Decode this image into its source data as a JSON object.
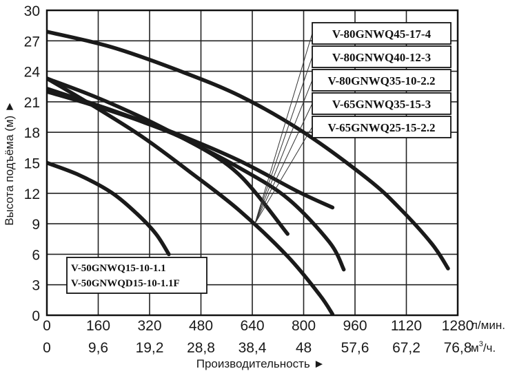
{
  "chart_data": {
    "type": "line",
    "title": "",
    "ylabel": "Высота подъёма (м) ►",
    "xlabel": "Производительность ►",
    "ylim": [
      0,
      30
    ],
    "xlim": [
      0,
      1280
    ],
    "grid": true,
    "y_ticks": [
      "0",
      "3",
      "6",
      "9",
      "12",
      "15",
      "18",
      "21",
      "24",
      "27",
      "30"
    ],
    "x_ticks_lmin": [
      "0",
      "160",
      "320",
      "480",
      "640",
      "800",
      "960",
      "1120",
      "1280"
    ],
    "x_ticks_m3h": [
      "0",
      "9,6",
      "19,2",
      "28,8",
      "38,4",
      "48",
      "57,6",
      "67,2",
      "76,8"
    ],
    "x_unit_lmin": "л/мин.",
    "x_unit_m3h_base": "м",
    "x_unit_m3h_sup": "3",
    "x_unit_m3h_tail": "/ч.",
    "series": [
      {
        "name": "V-80GNWQ45-17-4",
        "x": [
          0,
          200,
          400,
          600,
          800,
          1000,
          1100,
          1200,
          1250
        ],
        "y": [
          27.9,
          26.4,
          24.2,
          21.6,
          18.0,
          13.4,
          10.5,
          7.0,
          4.6
        ]
      },
      {
        "name": "V-80GNWQ40-12-3",
        "x": [
          0,
          150,
          300,
          450,
          600,
          750,
          880,
          925
        ],
        "y": [
          23.3,
          21.5,
          19.4,
          17.0,
          14.5,
          11.5,
          7.2,
          4.5
        ]
      },
      {
        "name": "V-80GNWQ35-10-2.2",
        "x": [
          0,
          150,
          300,
          450,
          600,
          750
        ],
        "y": [
          22.0,
          20.6,
          19.0,
          17.0,
          13.8,
          8.0
        ]
      },
      {
        "name": "V-65GNWQ35-15-3",
        "x": [
          0,
          150,
          300,
          450,
          600,
          750,
          850,
          890
        ],
        "y": [
          23.3,
          20.5,
          17.5,
          14.0,
          10.3,
          5.8,
          2.0,
          0.1
        ]
      },
      {
        "name": "V-65GNWQ25-15-2.2",
        "x": [
          0,
          200,
          400,
          600,
          780,
          890
        ],
        "y": [
          22.3,
          20.2,
          17.9,
          15.2,
          12.2,
          10.6
        ]
      },
      {
        "name": "V-50GNWQ15-10-1.1 / V-50GNWQD15-10-1.1F",
        "x": [
          0,
          100,
          200,
          280,
          340,
          380
        ],
        "y": [
          15.0,
          13.8,
          12.1,
          10.0,
          8.0,
          6.0
        ]
      }
    ],
    "legend_group": [
      "V-80GNWQ45-17-4",
      "V-80GNWQ40-12-3",
      "V-80GNWQ35-10-2.2",
      "V-65GNWQ35-15-3",
      "V-65GNWQ25-15-2.2"
    ],
    "legend_single": [
      "V-50GNWQ15-10-1.1",
      "V-50GNWQD15-10-1.1F"
    ]
  }
}
